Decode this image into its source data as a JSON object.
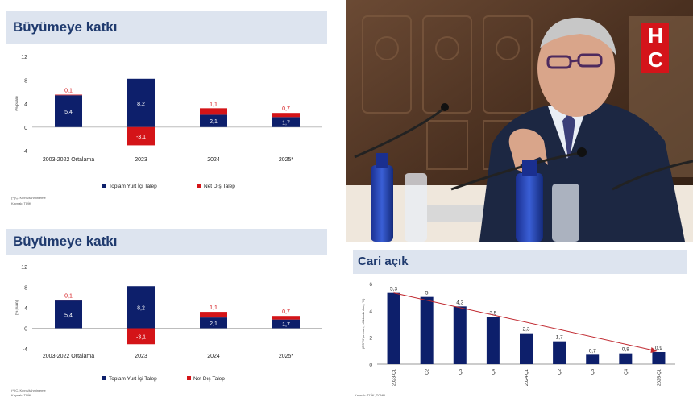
{
  "panels": [
    {
      "title": "Büyümeye katkı",
      "footnote": "(*) Ç. Kıbrıs/tahminleme",
      "source": "Kaynak: TÜİK"
    },
    {
      "title": "Büyümeye katkı",
      "footnote": "(*) Ç. Kıbrıs/tahminleme",
      "source": "Kaynak: TÜİK"
    },
    {
      "title": "Cari açık",
      "source": "Kaynak: TÜİK, TCMB"
    }
  ],
  "photo": {
    "logo_text": "HC"
  },
  "colors": {
    "domestic": "#0d1f6b",
    "external": "#d41418",
    "title_bg": "#dde4ef",
    "title_text": "#1f3a6e",
    "trend": "#c0282f"
  },
  "chart_data": [
    {
      "type": "bar",
      "stacked": true,
      "categories": [
        "2003-2022 Ortalama",
        "2023",
        "2024",
        "2025*"
      ],
      "series": [
        {
          "name": "Toplam Yurt İçi Talep",
          "values": [
            5.4,
            8.2,
            2.1,
            1.7
          ]
        },
        {
          "name": "Net Dış Talep",
          "values": [
            0.1,
            -3.1,
            1.1,
            0.7
          ]
        }
      ],
      "ylabel": "(% puan)",
      "ylim": [
        -4,
        12
      ],
      "yticks": [
        -4,
        0,
        4,
        8,
        12
      ],
      "legend": "bottom"
    },
    {
      "type": "bar",
      "stacked": true,
      "categories": [
        "2003-2022 Ortalama",
        "2023",
        "2024",
        "2025*"
      ],
      "series": [
        {
          "name": "Toplam Yurt İçi Talep",
          "values": [
            5.4,
            8.2,
            2.1,
            1.7
          ]
        },
        {
          "name": "Net Dış Talep",
          "values": [
            0.1,
            -3.1,
            1.1,
            0.7
          ]
        }
      ],
      "ylabel": "(% puan)",
      "ylim": [
        -4,
        12
      ],
      "yticks": [
        -4,
        0,
        4,
        8,
        12
      ],
      "legend": "bottom"
    },
    {
      "type": "bar",
      "categories": [
        "2023-Ç1",
        "Ç2",
        "Ç3",
        "Ç4",
        "2024-Ç1",
        "Ç2",
        "Ç3",
        "Ç4",
        "2025-Ç1"
      ],
      "values": [
        5.3,
        5.0,
        4.3,
        3.5,
        2.3,
        1.7,
        0.7,
        0.8,
        0.9
      ],
      "ylabel": "(GSYH'ya oran, yıllıklandırılmış, %)",
      "ylim": [
        0,
        6
      ],
      "yticks": [
        0,
        2,
        4,
        6
      ],
      "trend_line": true
    }
  ]
}
